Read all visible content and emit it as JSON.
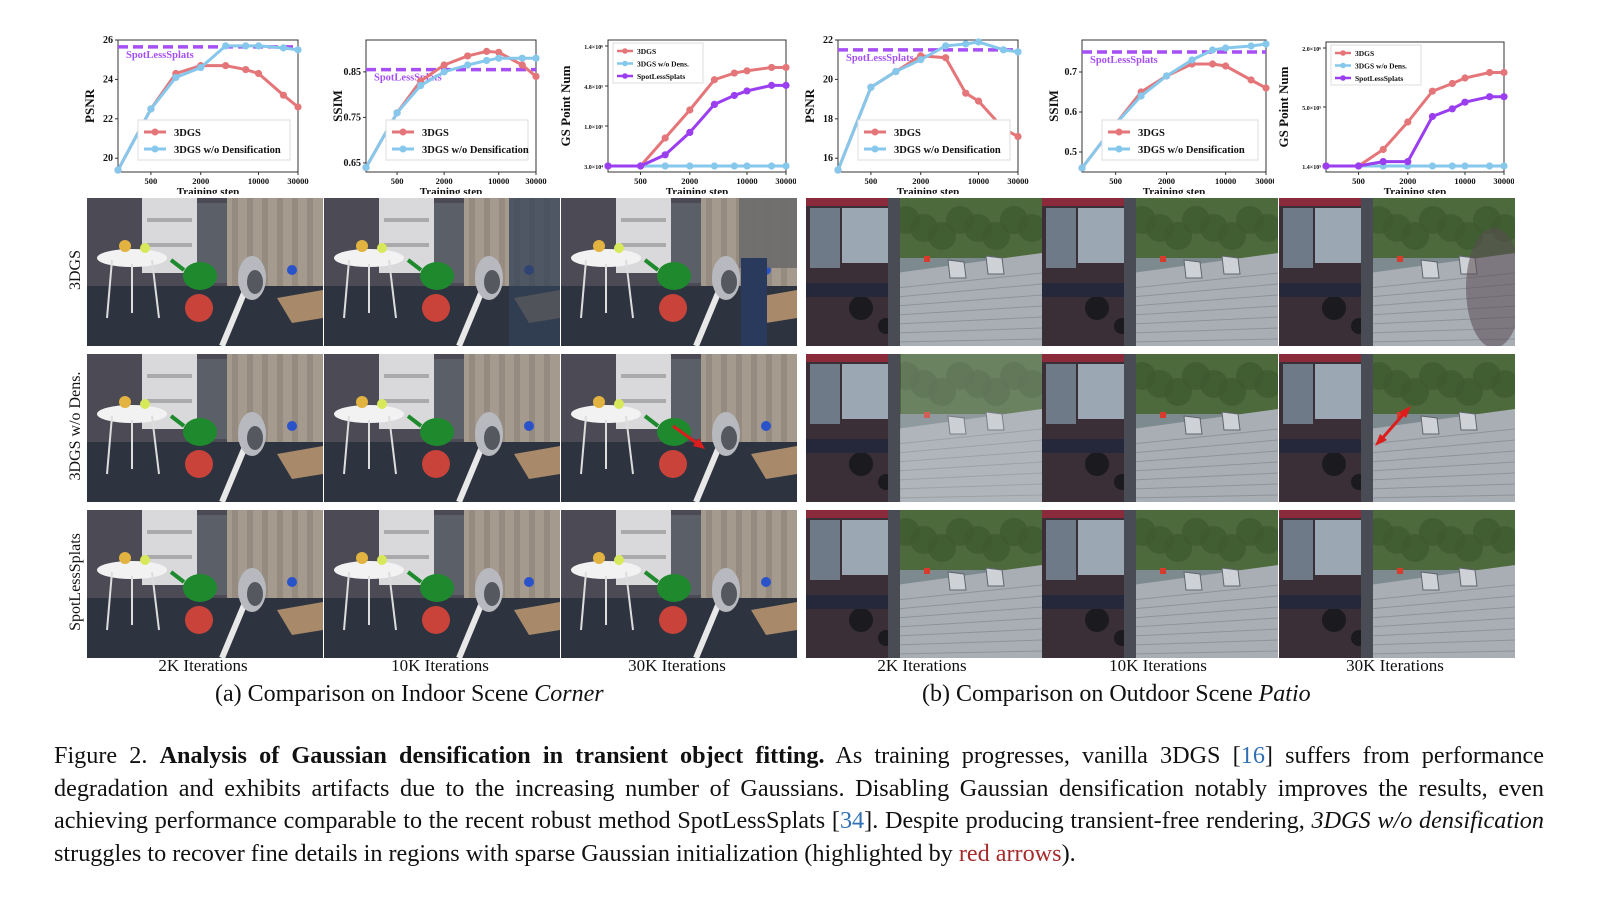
{
  "charts_text": {
    "psnr_label": "PSNR",
    "ssim_label": "SSIM",
    "gs_label": "GS Point Num",
    "xlabel": "Training step",
    "x_ticks": [
      "500",
      "2000",
      "10000",
      "30000"
    ],
    "spotless_label": "SpotLessSplats",
    "legend_3dgs": "3DGS",
    "legend_wo_dens": "3DGS w/o Densification",
    "legend_wo_dens_short": "3DGS w/o Dens.",
    "legend_spotless": "SpotLessSplats"
  },
  "chart_data": [
    {
      "type": "line",
      "panel": "indoor-psnr",
      "x": [
        200,
        500,
        1000,
        2000,
        4000,
        7000,
        10000,
        20000,
        30000
      ],
      "ylabel": "PSNR",
      "xlabel": "Training step",
      "ylim": [
        19.3,
        26
      ],
      "yticks": [
        20,
        22,
        24,
        26
      ],
      "series": [
        {
          "name": "3DGS",
          "values": [
            19.4,
            22.5,
            24.3,
            24.7,
            24.7,
            24.5,
            24.3,
            23.2,
            22.6
          ]
        },
        {
          "name": "3DGS w/o Densification",
          "values": [
            19.4,
            22.5,
            24.1,
            24.6,
            25.7,
            25.7,
            25.7,
            25.6,
            25.5
          ]
        }
      ],
      "hline": {
        "name": "SpotLessSplats",
        "value": 25.65
      }
    },
    {
      "type": "line",
      "panel": "indoor-ssim",
      "x": [
        200,
        500,
        1000,
        2000,
        4000,
        7000,
        10000,
        20000,
        30000
      ],
      "ylabel": "SSIM",
      "xlabel": "Training step",
      "ylim": [
        0.63,
        0.92
      ],
      "yticks": [
        0.65,
        0.75,
        0.85
      ],
      "series": [
        {
          "name": "3DGS",
          "values": [
            0.64,
            0.76,
            0.83,
            0.865,
            0.885,
            0.895,
            0.893,
            0.865,
            0.84
          ]
        },
        {
          "name": "3DGS w/o Densification",
          "values": [
            0.64,
            0.76,
            0.82,
            0.85,
            0.865,
            0.875,
            0.88,
            0.88,
            0.88
          ]
        }
      ],
      "hline": {
        "name": "SpotLessSplats",
        "value": 0.855
      }
    },
    {
      "type": "line",
      "panel": "indoor-gs",
      "x": [
        200,
        500,
        1000,
        2000,
        4000,
        7000,
        10000,
        20000,
        30000
      ],
      "ylabel": "GS Point Num",
      "xlabel": "Training step",
      "ylim": [
        0,
        1
      ],
      "yticks": [
        "3.0×10⁴",
        "1.0×10⁵",
        "4.8×10⁵",
        "1.4×10⁶"
      ],
      "series": [
        {
          "name": "3DGS",
          "values": [
            0.0,
            0.0,
            0.25,
            0.5,
            0.77,
            0.83,
            0.85,
            0.88,
            0.88
          ]
        },
        {
          "name": "3DGS w/o Dens.",
          "values": [
            0.0,
            0.0,
            0.0,
            0.0,
            0.0,
            0.0,
            0.0,
            0.0,
            0.0
          ]
        },
        {
          "name": "SpotLessSplats",
          "values": [
            0.0,
            0.0,
            0.1,
            0.3,
            0.55,
            0.63,
            0.67,
            0.72,
            0.72
          ]
        }
      ]
    },
    {
      "type": "line",
      "panel": "outdoor-psnr",
      "x": [
        200,
        500,
        1000,
        2000,
        4000,
        7000,
        10000,
        20000,
        30000
      ],
      "ylabel": "PSNR",
      "xlabel": "Training step",
      "ylim": [
        15.3,
        22
      ],
      "yticks": [
        16,
        18,
        20,
        22
      ],
      "series": [
        {
          "name": "3DGS",
          "values": [
            15.4,
            19.6,
            20.4,
            21.2,
            21.1,
            19.3,
            18.9,
            17.5,
            17.1
          ]
        },
        {
          "name": "3DGS w/o Densification",
          "values": [
            15.4,
            19.6,
            20.4,
            21.0,
            21.7,
            21.8,
            21.9,
            21.5,
            21.4
          ]
        }
      ],
      "hline": {
        "name": "SpotLessSplats",
        "value": 21.5
      }
    },
    {
      "type": "line",
      "panel": "outdoor-ssim",
      "x": [
        200,
        500,
        1000,
        2000,
        4000,
        7000,
        10000,
        20000,
        30000
      ],
      "ylabel": "SSIM",
      "xlabel": "Training step",
      "ylim": [
        0.45,
        0.78
      ],
      "yticks": [
        0.5,
        0.6,
        0.7
      ],
      "series": [
        {
          "name": "3DGS",
          "values": [
            0.46,
            0.57,
            0.65,
            0.69,
            0.72,
            0.72,
            0.715,
            0.68,
            0.66
          ]
        },
        {
          "name": "3DGS w/o Densification",
          "values": [
            0.46,
            0.57,
            0.64,
            0.69,
            0.73,
            0.755,
            0.76,
            0.765,
            0.77
          ]
        }
      ],
      "hline": {
        "name": "SpotLessSplats",
        "value": 0.75
      }
    },
    {
      "type": "line",
      "panel": "outdoor-gs",
      "x": [
        200,
        500,
        1000,
        2000,
        4000,
        7000,
        10000,
        20000,
        30000
      ],
      "ylabel": "GS Point Num",
      "xlabel": "Training step",
      "ylim": [
        0,
        1
      ],
      "yticks": [
        "1.4×10⁵",
        "5.0×10⁵",
        "2.0×10⁶"
      ],
      "series": [
        {
          "name": "3DGS",
          "values": [
            0.0,
            0.0,
            0.15,
            0.4,
            0.68,
            0.75,
            0.8,
            0.85,
            0.85
          ]
        },
        {
          "name": "3DGS w/o Dens.",
          "values": [
            0.0,
            0.0,
            0.0,
            0.0,
            0.0,
            0.0,
            0.0,
            0.0,
            0.0
          ]
        },
        {
          "name": "SpotLessSplats",
          "values": [
            0.0,
            0.0,
            0.04,
            0.04,
            0.45,
            0.52,
            0.58,
            0.63,
            0.63
          ]
        }
      ]
    }
  ],
  "colors": {
    "red": "#e4767a",
    "blue": "#86c7ec",
    "purple": "#9a3ef0",
    "dash": "#a64ff5",
    "arrow": "#dd1c1c"
  },
  "grid": {
    "row_labels": [
      "3DGS",
      "3DGS  w/o Dens.",
      "SpotLessSplats"
    ],
    "col_labels": [
      "2K Iterations",
      "10K Iterations",
      "30K Iterations",
      "2K Iterations",
      "10K Iterations",
      "30K Iterations"
    ]
  },
  "subcaptions": {
    "a_prefix": "(a) Comparison on Indoor Scene ",
    "a_scene": "Corner",
    "b_prefix": "(b) Comparison on Outdoor Scene ",
    "b_scene": "Patio"
  },
  "caption": {
    "fig": "Figure 2. ",
    "title": "Analysis of Gaussian densification in transient object fitting.",
    "p1": " As training progresses, vanilla 3DGS [",
    "ref1": "16",
    "p2": "] suffers from performance degradation and exhibits artifacts due to the increasing number of Gaussians.  Disabling Gaussian densification notably improves the results, even achieving performance comparable to the recent robust method SpotLessSplats [",
    "ref2": "34",
    "p3": "]. Despite producing transient-free rendering, ",
    "italic": "3DGS w/o densification",
    "p4": " struggles to recover fine details in regions with sparse Gaussian initialization (highlighted by ",
    "red_text": "red arrows",
    "p5": ")."
  }
}
